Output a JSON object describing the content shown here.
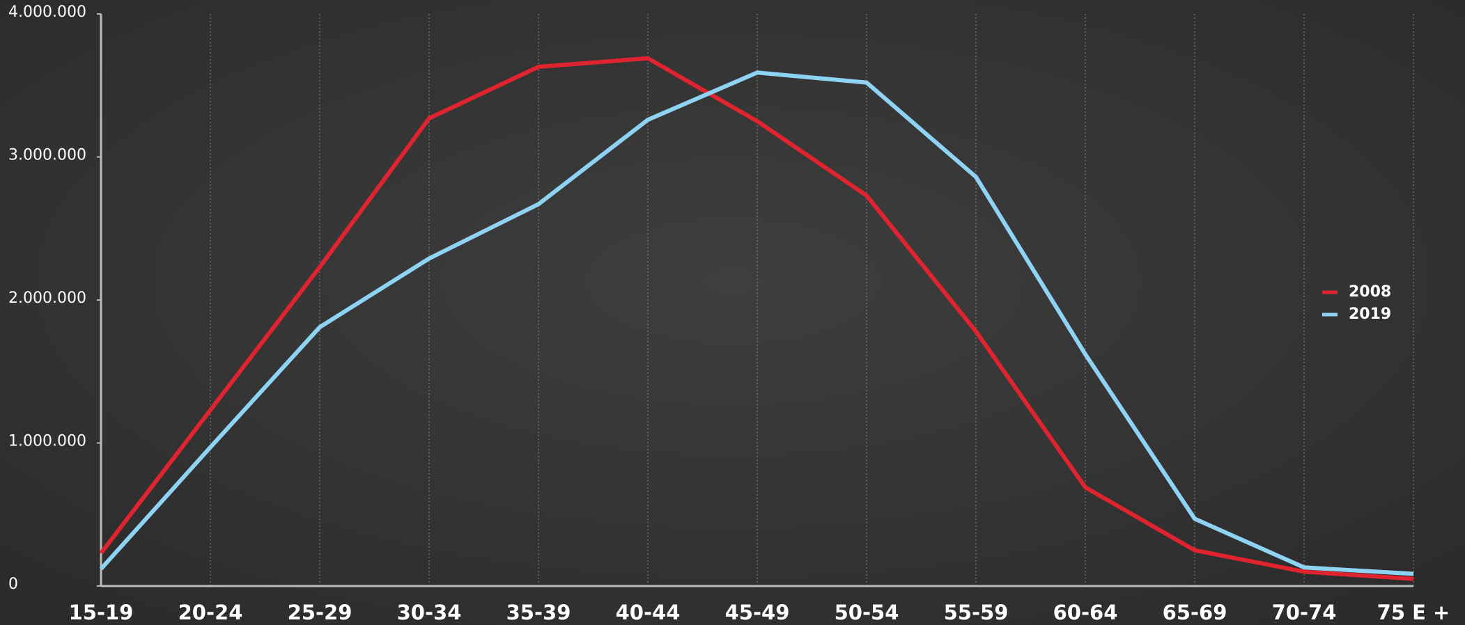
{
  "chart_data": {
    "type": "line",
    "categories": [
      "15-19",
      "20-24",
      "25-29",
      "30-34",
      "35-39",
      "40-44",
      "45-49",
      "50-54",
      "55-59",
      "60-64",
      "65-69",
      "70-74",
      "75 E +"
    ],
    "series": [
      {
        "name": "2008",
        "color": "#e0242f",
        "values": [
          230000,
          1230000,
          2230000,
          3270000,
          3630000,
          3690000,
          3250000,
          2730000,
          1780000,
          690000,
          250000,
          100000,
          50000
        ]
      },
      {
        "name": "2019",
        "color": "#8fd3f4",
        "values": [
          120000,
          970000,
          1810000,
          2290000,
          2670000,
          3260000,
          3590000,
          3520000,
          2860000,
          1620000,
          470000,
          130000,
          85000
        ]
      }
    ],
    "ylim": [
      0,
      4000000
    ],
    "yticks": [
      0,
      {
        "value": 1000000,
        "label": "1.000.000"
      },
      {
        "value": 2000000,
        "label": "2.000.000"
      },
      {
        "value": 3000000,
        "label": "3.000.000"
      },
      {
        "value": 4000000,
        "label": "4.000.000"
      }
    ],
    "grid": true,
    "legend": "right"
  }
}
